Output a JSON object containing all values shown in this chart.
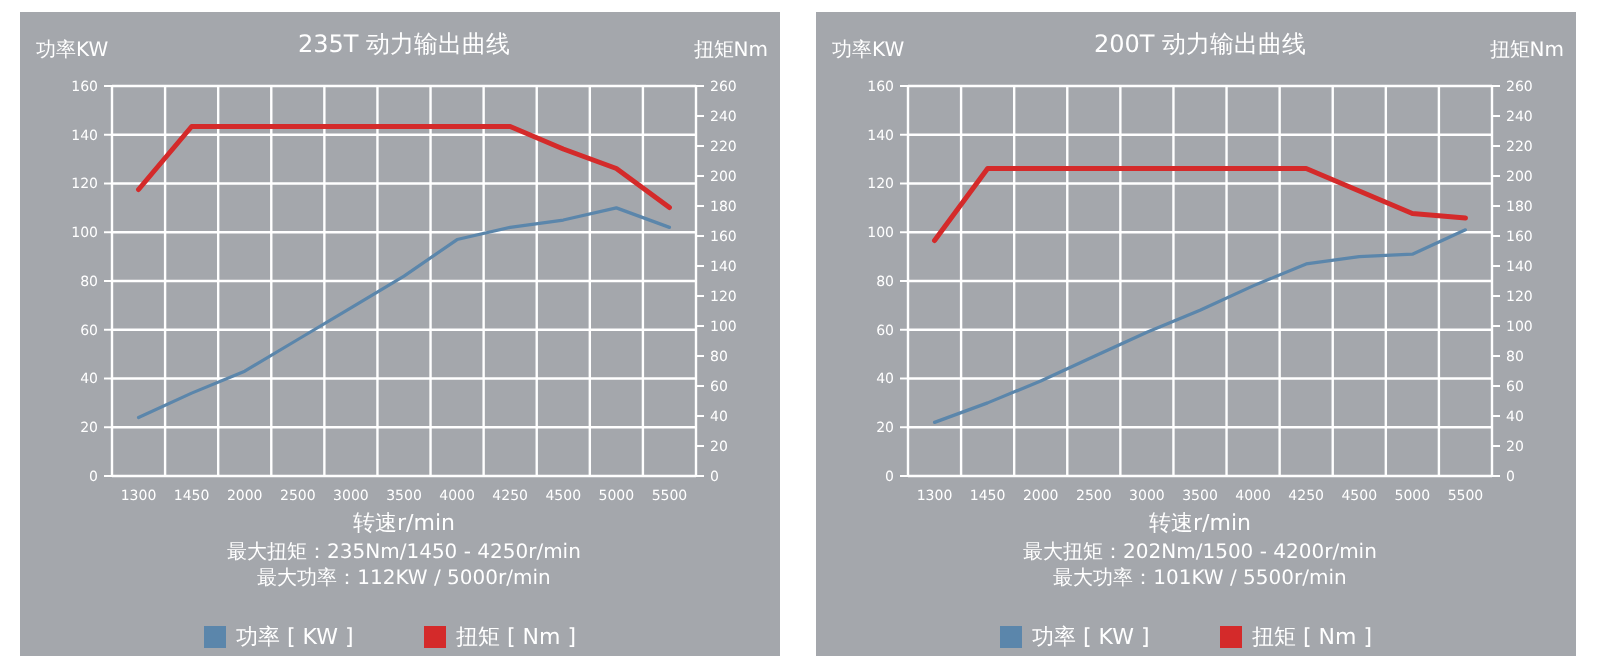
{
  "chart_data": [
    {
      "type": "line",
      "title": "235T  动力输出曲线",
      "xlabel": "转速r/min",
      "ylabel": "功率KW",
      "y2label": "扭矩Nm",
      "categories": [
        "1300",
        "1450",
        "2000",
        "2500",
        "3000",
        "3500",
        "4000",
        "4250",
        "4500",
        "5000",
        "5500"
      ],
      "series": [
        {
          "name": "功率 [ KW ]",
          "color": "#5b86ab",
          "values": [
            24,
            34,
            43,
            56,
            69,
            82,
            97,
            102,
            105,
            110,
            102
          ]
        },
        {
          "name": "扭矩 [ Nm ]",
          "color": "#d42a2a",
          "axis": "y2",
          "values": [
            191,
            233,
            233,
            233,
            233,
            233,
            233,
            233,
            218,
            205,
            179
          ]
        }
      ],
      "ylim": [
        0,
        160
      ],
      "yticks": [
        0,
        20,
        40,
        60,
        80,
        100,
        120,
        140,
        160
      ],
      "y2lim": [
        0,
        260
      ],
      "y2ticks": [
        0,
        20,
        40,
        60,
        80,
        100,
        120,
        140,
        160,
        180,
        200,
        220,
        240,
        260
      ],
      "grid": true,
      "legend": "bottom",
      "annotations": [
        "最大扭矩：235Nm/1450 - 4250r/min",
        "最大功率：112KW / 5000r/min"
      ]
    },
    {
      "type": "line",
      "title": "200T  动力输出曲线",
      "xlabel": "转速r/min",
      "ylabel": "功率KW",
      "y2label": "扭矩Nm",
      "categories": [
        "1300",
        "1450",
        "2000",
        "2500",
        "3000",
        "3500",
        "4000",
        "4250",
        "4500",
        "5000",
        "5500"
      ],
      "series": [
        {
          "name": "功率 [ KW ]",
          "color": "#5b86ab",
          "values": [
            22,
            30,
            39,
            49,
            59,
            68,
            78,
            87,
            90,
            91,
            101
          ]
        },
        {
          "name": "扭矩 [ Nm ]",
          "color": "#d42a2a",
          "axis": "y2",
          "values": [
            157,
            205,
            205,
            205,
            205,
            205,
            205,
            205,
            190,
            175,
            172
          ]
        }
      ],
      "ylim": [
        0,
        160
      ],
      "yticks": [
        0,
        20,
        40,
        60,
        80,
        100,
        120,
        140,
        160
      ],
      "y2lim": [
        0,
        260
      ],
      "y2ticks": [
        0,
        20,
        40,
        60,
        80,
        100,
        120,
        140,
        160,
        180,
        200,
        220,
        240,
        260
      ],
      "grid": true,
      "legend": "bottom",
      "annotations": [
        "最大扭矩：202Nm/1500 - 4200r/min",
        "最大功率：101KW / 5500r/min"
      ]
    }
  ]
}
